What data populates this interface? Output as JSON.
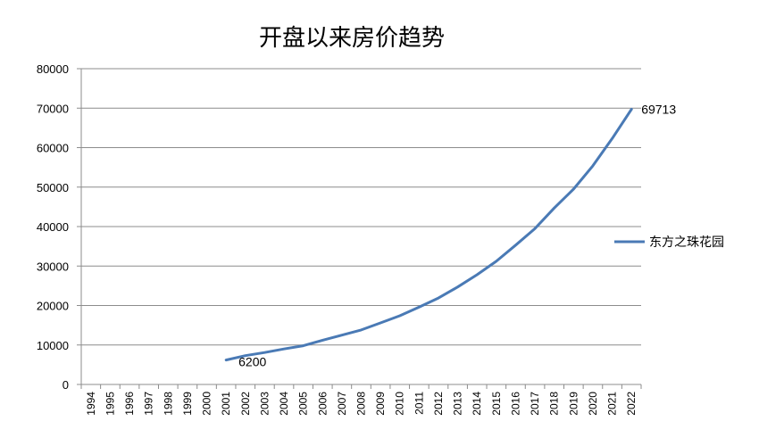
{
  "chart_data": {
    "type": "line",
    "title": "开盘以来房价趋势",
    "xlabel": "",
    "ylabel": "",
    "categories": [
      "1994",
      "1995",
      "1996",
      "1997",
      "1998",
      "1999",
      "2000",
      "2001",
      "2002",
      "2003",
      "2004",
      "2005",
      "2006",
      "2007",
      "2008",
      "2009",
      "2010",
      "2011",
      "2012",
      "2013",
      "2014",
      "2015",
      "2016",
      "2017",
      "2018",
      "2019",
      "2020",
      "2021",
      "2022"
    ],
    "series": [
      {
        "name": "东方之珠花园",
        "color": "#4a7ab5",
        "values": [
          null,
          null,
          null,
          null,
          null,
          null,
          null,
          6200,
          7300,
          8100,
          9000,
          9800,
          11200,
          12500,
          13800,
          15600,
          17400,
          19600,
          21900,
          24700,
          27800,
          31200,
          35300,
          39500,
          44700,
          49500,
          55400,
          62300,
          69713
        ]
      }
    ],
    "data_labels": [
      {
        "category": "2001",
        "text": "6200"
      },
      {
        "category": "2022",
        "text": "69713"
      }
    ],
    "ylim": [
      0,
      80000
    ],
    "yticks": [
      "0",
      "10000",
      "20000",
      "30000",
      "40000",
      "50000",
      "60000",
      "70000",
      "80000"
    ],
    "grid": true,
    "legend_position": "right"
  }
}
